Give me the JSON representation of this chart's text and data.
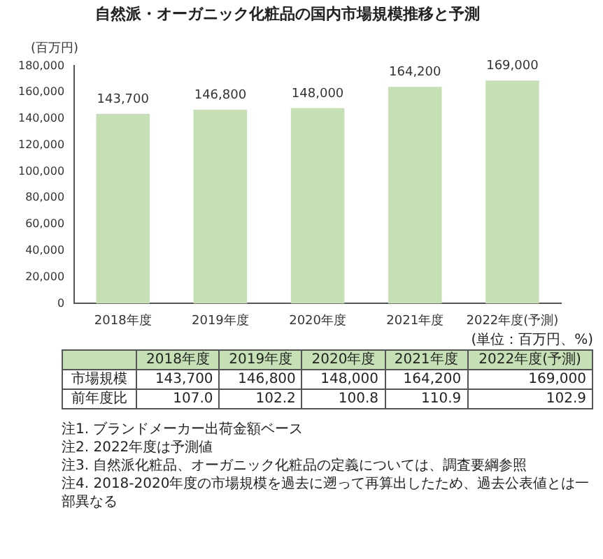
{
  "chart_data": {
    "type": "bar",
    "title": "自然派・オーガニック化粧品の国内市場規模推移と予測",
    "ylabel": "(百万円)",
    "categories": [
      "2018年度",
      "2019年度",
      "2020年度",
      "2021年度",
      "2022年度(予測)"
    ],
    "values": [
      143700,
      146800,
      148000,
      164200,
      169000
    ],
    "value_labels": [
      "143,700",
      "146,800",
      "148,000",
      "164,200",
      "169,000"
    ],
    "color": "#c5e0b4",
    "ylim": [
      0,
      180000
    ],
    "yticks": [
      {
        "value": 0,
        "label": "0"
      },
      {
        "value": 20000,
        "label": "20,000"
      },
      {
        "value": 40000,
        "label": "40,000"
      },
      {
        "value": 60000,
        "label": "60,000"
      },
      {
        "value": 80000,
        "label": "80,000"
      },
      {
        "value": 100000,
        "label": "100,000"
      },
      {
        "value": 120000,
        "label": "120,000"
      },
      {
        "value": 140000,
        "label": "140,000"
      },
      {
        "value": 160000,
        "label": "160,000"
      },
      {
        "value": 180000,
        "label": "180,000"
      }
    ],
    "grid": false,
    "legend": false,
    "annotations": [
      "(単位：百万円、%)",
      "市場規模",
      "前年度比",
      "107.0",
      "102.2",
      "100.8",
      "110.9",
      "102.9",
      "注1. ブランドメーカー出荷金額ベース",
      "注2. 2022年度は予測値",
      "注3. 自然派化粧品、オーガニック化粧品の定義については、調査要綱参照",
      "注4. 2018-2020年度の市場規模を過去に遡って再算出したため、過去公表値とは一部異なる"
    ]
  }
}
